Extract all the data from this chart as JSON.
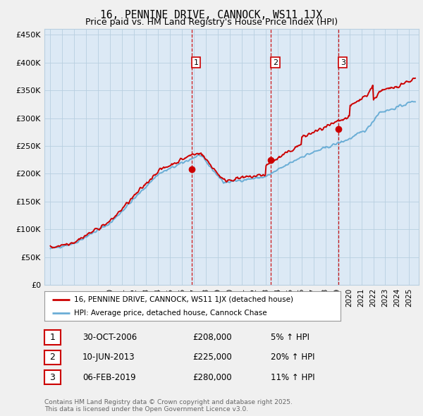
{
  "title": "16, PENNINE DRIVE, CANNOCK, WS11 1JX",
  "subtitle": "Price paid vs. HM Land Registry's House Price Index (HPI)",
  "ylim": [
    0,
    460000
  ],
  "yticks": [
    0,
    50000,
    100000,
    150000,
    200000,
    250000,
    300000,
    350000,
    400000,
    450000
  ],
  "ytick_labels": [
    "£0",
    "£50K",
    "£100K",
    "£150K",
    "£200K",
    "£250K",
    "£300K",
    "£350K",
    "£400K",
    "£450K"
  ],
  "sale_dates_num": [
    2006.83,
    2013.44,
    2019.09
  ],
  "sale_prices": [
    208000,
    225000,
    280000
  ],
  "sale_labels": [
    "1",
    "2",
    "3"
  ],
  "sale_date_strs": [
    "30-OCT-2006",
    "10-JUN-2013",
    "06-FEB-2019"
  ],
  "sale_price_strs": [
    "£208,000",
    "£225,000",
    "£280,000"
  ],
  "sale_hpi_strs": [
    "5% ↑ HPI",
    "20% ↑ HPI",
    "11% ↑ HPI"
  ],
  "hpi_color": "#6baed6",
  "sale_color": "#cc0000",
  "vline_color": "#cc0000",
  "background_color": "#f0f0f0",
  "plot_bg_color": "#dce9f5",
  "grid_color": "#b8cfe0",
  "title_fontsize": 10.5,
  "subtitle_fontsize": 9,
  "legend_label_sale": "16, PENNINE DRIVE, CANNOCK, WS11 1JX (detached house)",
  "legend_label_hpi": "HPI: Average price, detached house, Cannock Chase",
  "footer_text": "Contains HM Land Registry data © Crown copyright and database right 2025.\nThis data is licensed under the Open Government Licence v3.0.",
  "xlim_start": 1994.5,
  "xlim_end": 2025.8,
  "xtick_years": [
    1995,
    1996,
    1997,
    1998,
    1999,
    2000,
    2001,
    2002,
    2003,
    2004,
    2005,
    2006,
    2007,
    2008,
    2009,
    2010,
    2011,
    2012,
    2013,
    2014,
    2015,
    2016,
    2017,
    2018,
    2019,
    2020,
    2021,
    2022,
    2023,
    2024,
    2025
  ]
}
